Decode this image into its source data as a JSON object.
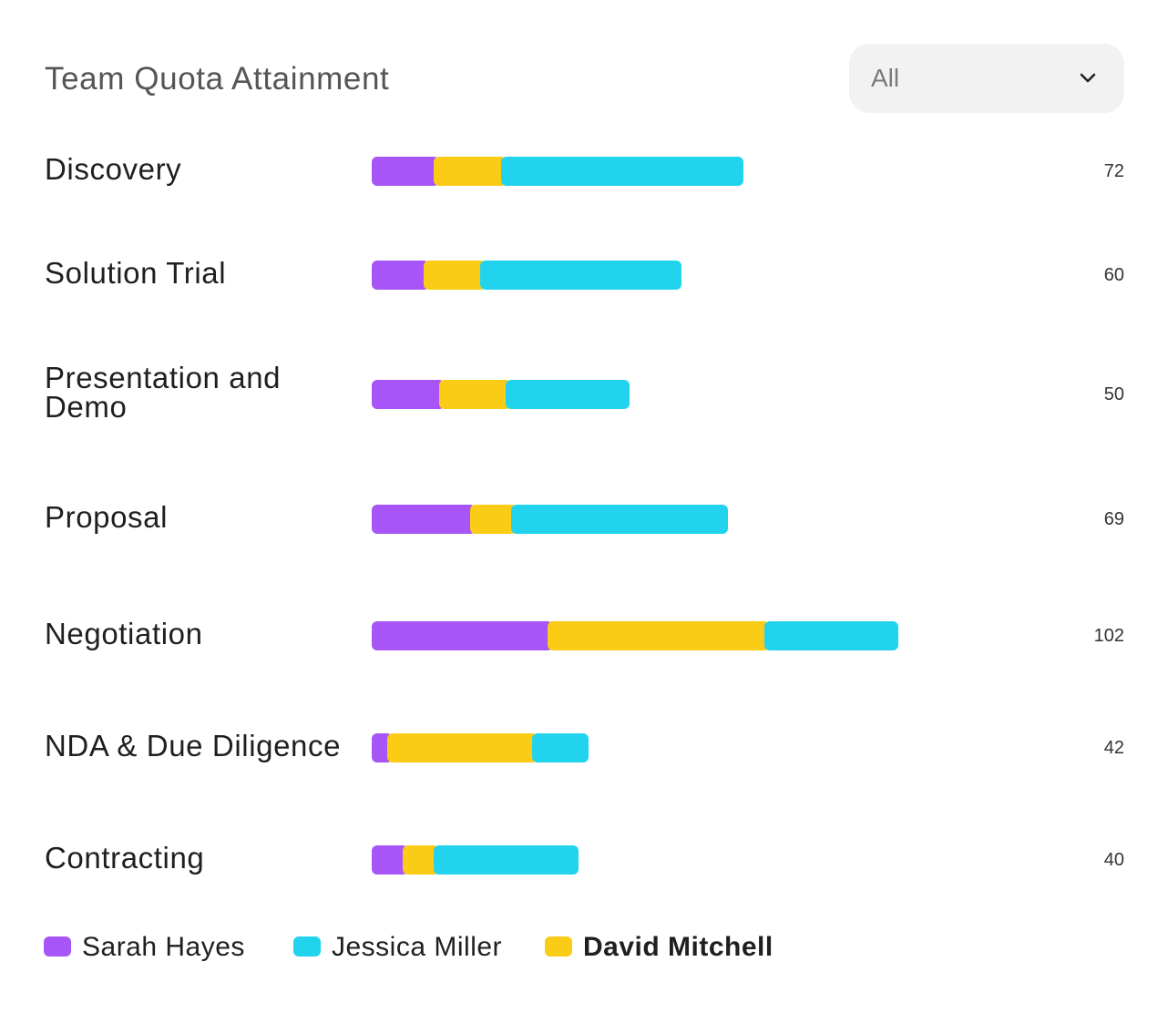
{
  "header": {
    "title": "Team Quota Attainment",
    "filter": {
      "selected": "All",
      "icon": "chevron-down-icon"
    }
  },
  "colors": {
    "sarah": "#a855f7",
    "jessica": "#22d3ee",
    "david": "#facc15"
  },
  "chart_data": {
    "type": "bar",
    "orientation": "horizontal",
    "stacked": true,
    "title": "Team Quota Attainment",
    "categories": [
      "Discovery",
      "Solution Trial",
      "Presentation and Demo",
      "Proposal",
      "Negotiation",
      "NDA & Due Diligence",
      "Contracting"
    ],
    "totals": [
      72,
      60,
      50,
      69,
      102,
      42,
      40
    ],
    "series": [
      {
        "name": "Sarah Hayes",
        "color": "#a855f7",
        "values": [
          12,
          10,
          13,
          19,
          34,
          3,
          6
        ]
      },
      {
        "name": "David Mitchell",
        "color": "#facc15",
        "values": [
          13,
          11,
          13,
          8,
          42,
          28,
          6
        ]
      },
      {
        "name": "Jessica Miller",
        "color": "#22d3ee",
        "values": [
          47,
          39,
          24,
          42,
          26,
          11,
          28
        ]
      }
    ],
    "xlim": [
      0,
      102
    ],
    "grid": false,
    "legend_position": "bottom-left",
    "legend": [
      "Sarah Hayes",
      "Jessica Miller",
      "David Mitchell"
    ]
  }
}
